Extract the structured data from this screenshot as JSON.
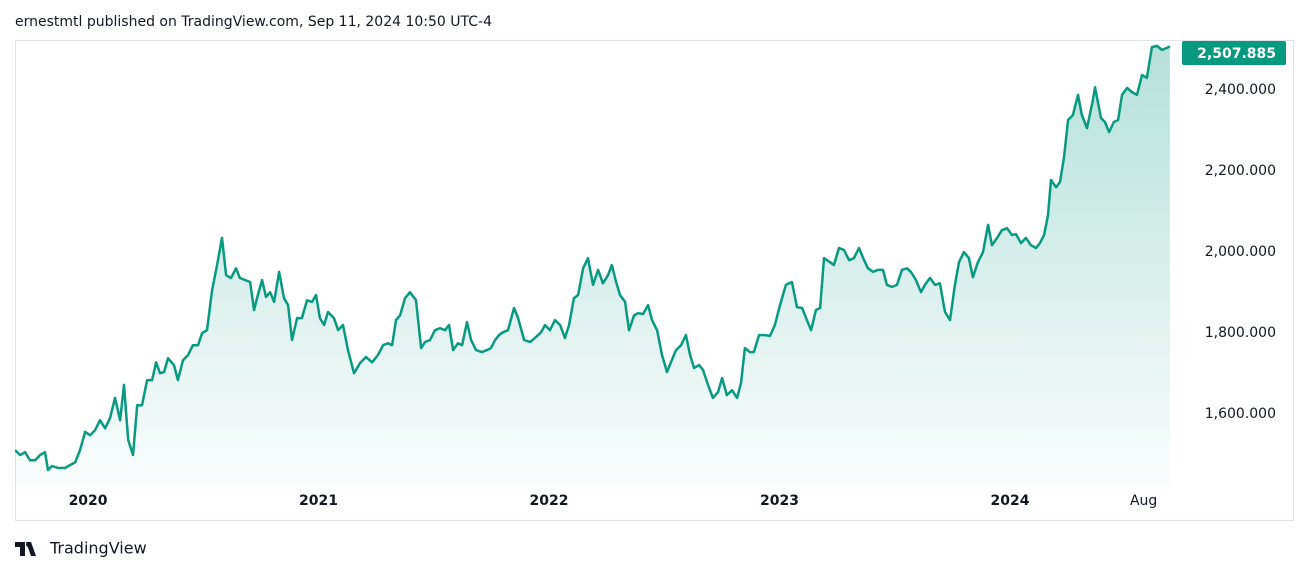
{
  "header": {
    "text": "ernestmtl published on TradingView.com, Sep 11, 2024 10:50 UTC-4"
  },
  "footer": {
    "brand": "TradingView"
  },
  "chart_data": {
    "type": "area",
    "color": "#089981",
    "grid": false,
    "price_label": "2,507.885",
    "xlim": [
      2019.683,
      2024.703
    ],
    "ylim": [
      1425,
      2521
    ],
    "xticks": [
      2020,
      2021,
      2022,
      2023,
      2024,
      {
        "value": 2024.58,
        "label": "Aug"
      }
    ],
    "yticks": [
      {
        "value": 1600,
        "label": "1,600.000"
      },
      {
        "value": 1800,
        "label": "1,800.000"
      },
      {
        "value": 2000,
        "label": "2,000.000"
      },
      {
        "value": 2200,
        "label": "2,200.000"
      },
      {
        "value": 2400,
        "label": "2,400.000"
      }
    ],
    "x": [
      2019.683,
      2019.705,
      2019.727,
      2019.748,
      2019.77,
      2019.792,
      2019.813,
      2019.826,
      2019.844,
      2019.87,
      2019.9,
      2019.922,
      2019.944,
      2019.965,
      2019.987,
      2020.009,
      2020.03,
      2020.052,
      2020.074,
      2020.095,
      2020.117,
      2020.139,
      2020.156,
      2020.174,
      2020.195,
      2020.213,
      2020.234,
      2020.256,
      2020.278,
      2020.295,
      2020.312,
      2020.33,
      2020.347,
      2020.373,
      2020.39,
      2020.412,
      2020.434,
      2020.455,
      2020.477,
      2020.495,
      2020.516,
      2020.538,
      2020.56,
      2020.581,
      2020.599,
      2020.62,
      2020.642,
      2020.659,
      2020.681,
      2020.703,
      2020.72,
      2020.737,
      2020.755,
      2020.772,
      2020.79,
      2020.807,
      2020.829,
      2020.85,
      2020.868,
      2020.885,
      2020.907,
      2020.928,
      2020.95,
      2020.972,
      2020.989,
      2021.006,
      2021.024,
      2021.041,
      2021.067,
      2021.085,
      2021.106,
      2021.128,
      2021.154,
      2021.18,
      2021.206,
      2021.232,
      2021.258,
      2021.28,
      2021.302,
      2021.319,
      2021.336,
      2021.354,
      2021.375,
      2021.397,
      2021.423,
      2021.445,
      2021.462,
      2021.484,
      2021.505,
      2021.527,
      2021.549,
      2021.566,
      2021.584,
      2021.605,
      2021.623,
      2021.644,
      2021.662,
      2021.683,
      2021.709,
      2021.731,
      2021.748,
      2021.766,
      2021.783,
      2021.8,
      2021.822,
      2021.848,
      2021.866,
      2021.892,
      2021.918,
      2021.939,
      2021.965,
      2021.983,
      2022.004,
      2022.026,
      2022.048,
      2022.069,
      2022.087,
      2022.108,
      2022.126,
      2022.148,
      2022.169,
      2022.191,
      2022.213,
      2022.234,
      2022.256,
      2022.273,
      2022.291,
      2022.308,
      2022.33,
      2022.347,
      2022.369,
      2022.386,
      2022.408,
      2022.43,
      2022.447,
      2022.469,
      2022.49,
      2022.512,
      2022.529,
      2022.551,
      2022.573,
      2022.594,
      2022.612,
      2022.629,
      2022.651,
      2022.668,
      2022.69,
      2022.711,
      2022.733,
      2022.751,
      2022.772,
      2022.794,
      2022.816,
      2022.833,
      2022.85,
      2022.872,
      2022.889,
      2022.911,
      2022.937,
      2022.959,
      2022.98,
      2023.002,
      2023.028,
      2023.054,
      2023.076,
      2023.098,
      2023.119,
      2023.137,
      2023.158,
      2023.176,
      2023.193,
      2023.219,
      2023.236,
      2023.258,
      2023.28,
      2023.302,
      2023.323,
      2023.345,
      2023.367,
      2023.384,
      2023.406,
      2023.427,
      2023.449,
      2023.466,
      2023.488,
      2023.51,
      2023.531,
      2023.553,
      2023.57,
      2023.592,
      2023.614,
      2023.631,
      2023.653,
      2023.675,
      2023.696,
      2023.718,
      2023.74,
      2023.761,
      2023.779,
      2023.8,
      2023.822,
      2023.839,
      2023.861,
      2023.883,
      2023.905,
      2023.922,
      2023.944,
      2023.965,
      2023.987,
      2024.009,
      2024.026,
      2024.048,
      2024.069,
      2024.091,
      2024.113,
      2024.13,
      2024.148,
      2024.165,
      2024.178,
      2024.2,
      2024.217,
      2024.234,
      2024.252,
      2024.273,
      2024.295,
      2024.312,
      2024.334,
      2024.36,
      2024.369,
      2024.395,
      2024.412,
      2024.43,
      2024.451,
      2024.469,
      2024.486,
      2024.508,
      2024.529,
      2024.551,
      2024.573,
      2024.594,
      2024.616,
      2024.638,
      2024.659,
      2024.681,
      2024.694
    ],
    "values": [
      1511,
      1499,
      1506,
      1486,
      1486,
      1499,
      1506,
      1462,
      1472,
      1467,
      1467,
      1474,
      1481,
      1511,
      1556,
      1548,
      1560,
      1585,
      1565,
      1590,
      1640,
      1585,
      1672,
      1536,
      1499,
      1622,
      1622,
      1684,
      1684,
      1728,
      1701,
      1704,
      1738,
      1721,
      1684,
      1733,
      1746,
      1770,
      1770,
      1800,
      1807,
      1906,
      1968,
      2035,
      1943,
      1936,
      1960,
      1936,
      1931,
      1926,
      1857,
      1894,
      1931,
      1889,
      1901,
      1877,
      1951,
      1886,
      1869,
      1783,
      1837,
      1837,
      1881,
      1877,
      1894,
      1837,
      1820,
      1852,
      1837,
      1807,
      1820,
      1758,
      1701,
      1726,
      1741,
      1728,
      1746,
      1770,
      1775,
      1770,
      1832,
      1844,
      1886,
      1901,
      1881,
      1763,
      1778,
      1783,
      1807,
      1812,
      1807,
      1820,
      1758,
      1775,
      1770,
      1827,
      1783,
      1758,
      1753,
      1758,
      1763,
      1783,
      1795,
      1802,
      1807,
      1862,
      1837,
      1783,
      1778,
      1788,
      1802,
      1820,
      1807,
      1832,
      1820,
      1788,
      1820,
      1886,
      1894,
      1960,
      1985,
      1919,
      1956,
      1923,
      1943,
      1968,
      1926,
      1894,
      1877,
      1807,
      1844,
      1849,
      1847,
      1869,
      1832,
      1807,
      1746,
      1704,
      1728,
      1758,
      1770,
      1795,
      1746,
      1714,
      1721,
      1709,
      1672,
      1640,
      1654,
      1689,
      1647,
      1659,
      1640,
      1677,
      1763,
      1753,
      1753,
      1795,
      1795,
      1793,
      1820,
      1869,
      1919,
      1926,
      1864,
      1862,
      1832,
      1807,
      1857,
      1862,
      1985,
      1975,
      1968,
      2010,
      2005,
      1980,
      1985,
      2010,
      1980,
      1960,
      1951,
      1956,
      1956,
      1919,
      1914,
      1919,
      1956,
      1960,
      1951,
      1931,
      1901,
      1919,
      1936,
      1919,
      1923,
      1852,
      1832,
      1919,
      1975,
      2000,
      1985,
      1938,
      1975,
      2000,
      2067,
      2017,
      2035,
      2054,
      2059,
      2042,
      2044,
      2022,
      2035,
      2017,
      2010,
      2022,
      2042,
      2091,
      2178,
      2160,
      2173,
      2232,
      2326,
      2338,
      2388,
      2338,
      2306,
      2375,
      2407,
      2331,
      2321,
      2296,
      2321,
      2326,
      2388,
      2405,
      2395,
      2388,
      2437,
      2430,
      2506,
      2509,
      2499,
      2504,
      2507.885
    ]
  }
}
